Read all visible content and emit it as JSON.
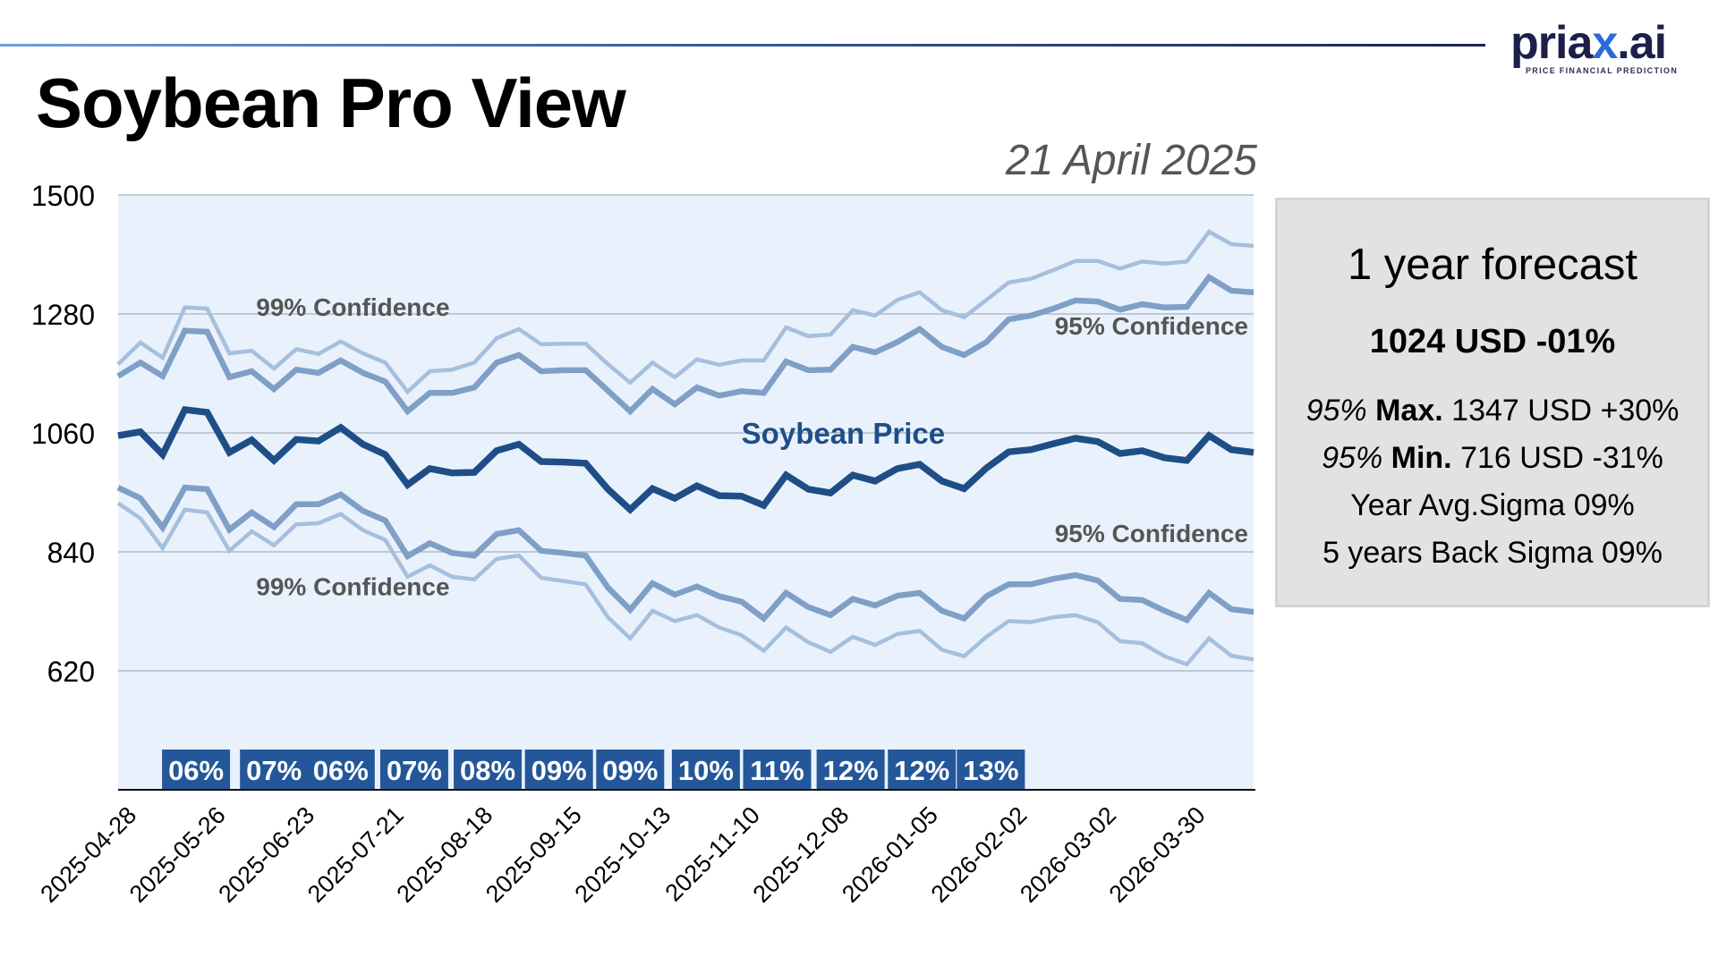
{
  "header": {
    "title": "Soybean Pro View",
    "date": "21 April 2025",
    "logo": {
      "word_start": "pria",
      "word_accent": "x",
      "word_end": ".ai",
      "tagline": "PRICE FINANCIAL PREDICTION"
    }
  },
  "forecast_box": {
    "title": "1 year forecast",
    "headline": "1024 USD -01%",
    "max": {
      "prefix": "95%",
      "label": "Max.",
      "value": "1347 USD +30%"
    },
    "min": {
      "prefix": "95%",
      "label": "Min.",
      "value": "716 USD -31%"
    },
    "year_avg_sigma": "Year Avg.Sigma 09%",
    "back_sigma": "5 years Back Sigma 09%"
  },
  "colors": {
    "price": "#1f4e87",
    "band95": "#7f9fc6",
    "band99": "#a6bfdc",
    "plot_bg": "#e9f2fc",
    "badge": "#24579a",
    "label_gray": "#555555"
  },
  "chart_data": {
    "type": "line",
    "title": "Soybean Pro View",
    "xlabel": "",
    "ylabel": "",
    "ylim": [
      400,
      1500
    ],
    "yticks": [
      620,
      840,
      1060,
      1280,
      1500
    ],
    "grid": true,
    "x_start": "2025-04-28",
    "x_step_days": 7,
    "xtick_labels": [
      "2025-04-28",
      "2025-05-26",
      "2025-06-23",
      "2025-07-21",
      "2025-08-18",
      "2025-09-15",
      "2025-10-13",
      "2025-11-10",
      "2025-12-08",
      "2026-01-05",
      "2026-02-02",
      "2026-03-02",
      "2026-03-30"
    ],
    "xtick_every": 4,
    "series": [
      {
        "name": "Soybean Price",
        "role": "price",
        "values": [
          1055,
          1062,
          1020,
          1103,
          1098,
          1024,
          1047,
          1009,
          1048,
          1045,
          1070,
          1039,
          1020,
          964,
          994,
          986,
          987,
          1027,
          1039,
          1007,
          1006,
          1004,
          956,
          918,
          957,
          939,
          962,
          944,
          943,
          926,
          982,
          956,
          949,
          982,
          971,
          994,
          1002,
          971,
          957,
          995,
          1025,
          1029,
          1040,
          1050,
          1044,
          1022,
          1027,
          1014,
          1009,
          1055,
          1029,
          1024
        ]
      },
      {
        "name": "95% Confidence Upper",
        "role": "band95",
        "values": [
          1165,
          1190,
          1165,
          1249,
          1247,
          1163,
          1174,
          1141,
          1177,
          1171,
          1194,
          1171,
          1155,
          1100,
          1134,
          1134,
          1144,
          1190,
          1204,
          1174,
          1176,
          1176,
          1138,
          1100,
          1141,
          1113,
          1144,
          1129,
          1137,
          1134,
          1192,
          1176,
          1177,
          1219,
          1209,
          1228,
          1252,
          1219,
          1204,
          1228,
          1270,
          1277,
          1290,
          1305,
          1303,
          1288,
          1298,
          1292,
          1293,
          1348,
          1323,
          1320
        ]
      },
      {
        "name": "99% Confidence Upper",
        "role": "band99",
        "values": [
          1187,
          1227,
          1199,
          1292,
          1290,
          1207,
          1212,
          1179,
          1215,
          1206,
          1229,
          1207,
          1190,
          1136,
          1174,
          1177,
          1190,
          1235,
          1252,
          1224,
          1225,
          1225,
          1187,
          1153,
          1190,
          1163,
          1196,
          1186,
          1194,
          1194,
          1255,
          1239,
          1242,
          1287,
          1277,
          1306,
          1320,
          1287,
          1274,
          1306,
          1338,
          1345,
          1361,
          1378,
          1378,
          1364,
          1377,
          1373,
          1377,
          1432,
          1409,
          1406
        ]
      },
      {
        "name": "95% Confidence Lower",
        "role": "band95",
        "values": [
          959,
          939,
          885,
          959,
          956,
          881,
          913,
          886,
          928,
          928,
          946,
          916,
          898,
          832,
          856,
          838,
          833,
          873,
          880,
          842,
          838,
          833,
          774,
          733,
          782,
          761,
          776,
          758,
          748,
          717,
          764,
          738,
          723,
          753,
          741,
          759,
          764,
          731,
          717,
          758,
          780,
          780,
          790,
          797,
          787,
          753,
          751,
          731,
          714,
          764,
          734,
          729
        ]
      },
      {
        "name": "99% Confidence Lower",
        "role": "band99",
        "values": [
          930,
          902,
          847,
          918,
          913,
          842,
          878,
          852,
          891,
          893,
          910,
          880,
          862,
          794,
          815,
          794,
          789,
          827,
          833,
          792,
          786,
          780,
          719,
          680,
          731,
          712,
          723,
          700,
          686,
          657,
          700,
          673,
          655,
          683,
          668,
          688,
          694,
          659,
          647,
          683,
          712,
          710,
          719,
          723,
          710,
          675,
          671,
          647,
          632,
          680,
          648,
          641
        ]
      }
    ],
    "annotations": [
      {
        "text": "99% Confidence",
        "anchor": "upper-99",
        "index": 6,
        "value": 1277
      },
      {
        "text": "95% Confidence",
        "anchor": "upper-95",
        "index": 51,
        "value": 1242
      },
      {
        "text": "Soybean Price",
        "anchor": "price",
        "index": 22,
        "value": 1040
      },
      {
        "text": "95% Confidence",
        "anchor": "lower-95",
        "index": 51,
        "value": 858
      },
      {
        "text": "99% Confidence",
        "anchor": "lower-99",
        "index": 6,
        "value": 760
      }
    ],
    "sigma_badges": [
      {
        "text": "06%",
        "index": 3.5
      },
      {
        "text": "07%",
        "index": 7
      },
      {
        "text": "06%",
        "index": 10
      },
      {
        "text": "07%",
        "index": 13.3
      },
      {
        "text": "08%",
        "index": 16.6
      },
      {
        "text": "09%",
        "index": 19.8
      },
      {
        "text": "09%",
        "index": 23
      },
      {
        "text": "10%",
        "index": 26.4
      },
      {
        "text": "11%",
        "index": 29.6
      },
      {
        "text": "12%",
        "index": 32.9
      },
      {
        "text": "12%",
        "index": 36.1
      },
      {
        "text": "13%",
        "index": 39.2
      }
    ]
  }
}
